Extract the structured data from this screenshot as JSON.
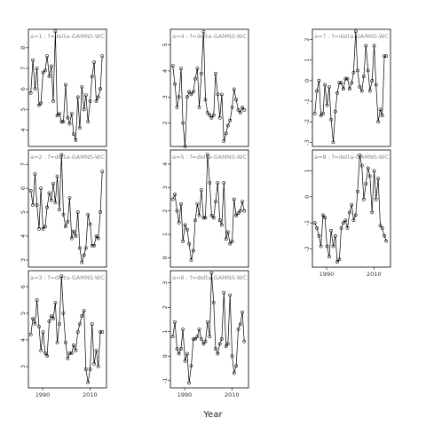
{
  "chart_data": {
    "type": "line",
    "xlabel": "Year",
    "ylabel": "",
    "xlim": [
      1984,
      2017
    ],
    "x_ticks": [
      1990,
      2010
    ],
    "x_tick_labels": [
      "1990",
      "2010"
    ],
    "x_years": [
      1985,
      1985.9,
      1986.8,
      1987.6,
      1988.5,
      1989.3,
      1990.2,
      1991.1,
      1991.9,
      1992.8,
      1993.7,
      1994.5,
      1995.4,
      1996.2,
      1997.1,
      1998,
      1998.8,
      1999.7,
      2000.6,
      2001.4,
      2002.3,
      2003.1,
      2004,
      2004.9,
      2005.7,
      2006.6,
      2007.5,
      2008.3,
      2009.2,
      2010.1,
      2010.9,
      2011.8,
      2012.7,
      2013.5,
      2014.4,
      2015.2
    ],
    "panels": [
      {
        "label": "a=1 : f=delta-GAMNS-WC",
        "ylim": [
          3.2,
          8.9
        ],
        "yticks": [
          4,
          5,
          6,
          7,
          8
        ],
        "values": [
          5.8,
          7.4,
          6.0,
          7.0,
          5.2,
          5.3,
          6.8,
          6.9,
          7.6,
          6.6,
          7.1,
          5.4,
          8.8,
          4.7,
          4.8,
          4.4,
          4.4,
          6.2,
          4.6,
          4.3,
          4.8,
          3.8,
          3.5,
          5.6,
          4.1,
          6.1,
          5.0,
          5.7,
          4.4,
          5.4,
          6.6,
          7.3,
          5.4,
          5.6,
          6.0,
          7.6
        ]
      },
      {
        "label": "a=2 : f=delta-GAMNS-WC",
        "ylim": [
          2.7,
          7.6
        ],
        "yticks": [
          3,
          4,
          5,
          6,
          7
        ],
        "values": [
          5.9,
          5.3,
          6.6,
          5.3,
          4.3,
          6.0,
          4.3,
          4.4,
          5.2,
          5.8,
          5.5,
          6.2,
          5.4,
          6.5,
          5.1,
          7.4,
          4.9,
          4.4,
          4.6,
          5.6,
          3.9,
          4.2,
          4.0,
          5.0,
          3.5,
          2.9,
          3.2,
          3.5,
          4.9,
          4.5,
          3.6,
          3.6,
          4.0,
          3.9,
          5.0,
          6.7
        ]
      },
      {
        "label": "a=3 : f=delta-GAMNS-WC",
        "ylim": [
          2.2,
          6.6
        ],
        "yticks": [
          3,
          4,
          5,
          6
        ],
        "values": [
          4.2,
          4.8,
          4.6,
          5.5,
          4.5,
          3.6,
          4.3,
          3.5,
          3.4,
          4.7,
          4.9,
          4.8,
          5.4,
          3.9,
          4.6,
          6.4,
          5.0,
          3.9,
          3.3,
          3.5,
          3.5,
          3.8,
          3.6,
          4.3,
          4.6,
          4.9,
          5.1,
          2.9,
          2.4,
          2.9,
          4.6,
          3.1,
          3.6,
          3.0,
          4.3,
          4.3
        ]
      },
      {
        "label": "a=4 : f=delta-GAMNS-WC",
        "ylim": [
          1.1,
          5.6
        ],
        "yticks": [
          2,
          3,
          4,
          5
        ],
        "values": [
          4.2,
          3.5,
          2.6,
          3.0,
          4.1,
          2.0,
          1.1,
          3.0,
          3.2,
          3.1,
          3.2,
          3.7,
          4.1,
          2.6,
          3.9,
          5.5,
          2.9,
          2.4,
          2.3,
          2.2,
          2.3,
          3.9,
          3.1,
          2.2,
          3.1,
          1.3,
          1.6,
          1.9,
          2.1,
          2.6,
          3.3,
          2.9,
          2.5,
          2.4,
          2.6,
          2.5
        ]
      },
      {
        "label": "a=5 : f=delta-GAMNS-WC",
        "ylim": [
          -0.4,
          4.6
        ],
        "yticks": [
          0,
          1,
          2,
          3,
          4
        ],
        "values": [
          2.5,
          2.7,
          2.0,
          1.5,
          2.3,
          0.7,
          1.4,
          1.2,
          0.6,
          -0.1,
          0.3,
          1.6,
          2.3,
          1.8,
          2.9,
          1.7,
          1.7,
          4.4,
          3.2,
          1.8,
          1.7,
          2.4,
          3.2,
          1.6,
          1.4,
          3.2,
          0.8,
          1.1,
          0.6,
          0.7,
          2.5,
          1.8,
          1.9,
          2.0,
          2.4,
          2.0
        ]
      },
      {
        "label": "a=6 : f=delta-GAMNS-WC",
        "ylim": [
          -1.3,
          3.5
        ],
        "yticks": [
          -1,
          0,
          1,
          2,
          3
        ],
        "values": [
          0.8,
          1.4,
          0.3,
          0.1,
          0.3,
          1.1,
          -0.2,
          0.1,
          -1.1,
          -0.4,
          0.7,
          0.7,
          0.8,
          1.1,
          0.7,
          0.5,
          0.6,
          1.4,
          0.8,
          3.4,
          2.2,
          0.3,
          0.1,
          0.5,
          0.7,
          2.6,
          0.4,
          0.5,
          2.5,
          0.0,
          -0.7,
          -0.4,
          1.1,
          1.3,
          1.8,
          0.6
        ]
      },
      {
        "label": "a=7 : f=delta-GAMNS-WC",
        "ylim": [
          -3.2,
          2.5
        ],
        "yticks": [
          -3,
          -2,
          -1,
          0,
          1,
          2
        ],
        "values": [
          -1.6,
          -0.5,
          0.0,
          -1.7,
          -1.6,
          -0.2,
          -1.2,
          -0.3,
          -1.9,
          -3.0,
          -1.5,
          -0.6,
          -0.1,
          -0.1,
          -0.4,
          0.1,
          0.1,
          -0.4,
          -0.1,
          0.4,
          2.4,
          0.5,
          -0.3,
          -0.5,
          0.2,
          1.7,
          0.5,
          -0.5,
          0.0,
          1.7,
          -0.2,
          -2.0,
          -1.4,
          -1.7,
          1.2,
          1.2
        ]
      },
      {
        "label": "a=8 : f=delta-GAMNS-WC",
        "ylim": [
          -2.7,
          1.8
        ],
        "yticks": [
          -2,
          -1,
          0,
          1
        ],
        "values": [
          -1.0,
          -1.2,
          -1.5,
          -1.9,
          -0.7,
          -0.8,
          -1.9,
          -2.3,
          -1.3,
          -1.9,
          -1.5,
          -2.5,
          -2.4,
          -1.2,
          -1.0,
          -0.9,
          -1.2,
          -0.6,
          -0.3,
          -0.9,
          -0.7,
          0.2,
          1.6,
          1.2,
          -0.1,
          0.5,
          1.1,
          0.8,
          -0.6,
          1.0,
          -0.1,
          0.7,
          -1.1,
          -1.2,
          -1.5,
          -1.7
        ]
      }
    ]
  }
}
